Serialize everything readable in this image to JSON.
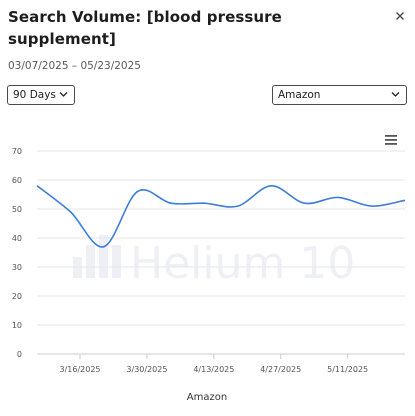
{
  "dialog": {
    "title": "Search Volume: [blood pressure supplement]",
    "date_range": "03/07/2025 – 05/23/2025",
    "close_icon": "close-icon"
  },
  "controls": {
    "period_select": {
      "value": "90 Days",
      "icon": "chevron-down-icon"
    },
    "marketplace_select": {
      "value": "Amazon",
      "icon": "chevron-down-icon"
    },
    "chart_menu_icon": "hamburger-menu-icon"
  },
  "watermark": {
    "text": "Helium 10",
    "icon": "helium10-logo-icon"
  },
  "colors": {
    "line": "#3b7dd8",
    "grid": "#e6e6e6",
    "axis": "#cccccc"
  },
  "chart_data": {
    "type": "line",
    "title": "",
    "xlabel": "Amazon",
    "ylabel": "",
    "ylim": [
      0,
      70
    ],
    "yticks": [
      0,
      10,
      20,
      30,
      40,
      50,
      60,
      70
    ],
    "xlim": [
      "2025-03-07",
      "2025-05-23"
    ],
    "xticks": [
      "3/16/2025",
      "3/30/2025",
      "4/13/2025",
      "4/27/2025",
      "5/11/2025"
    ],
    "xtick_dates": [
      "2025-03-16",
      "2025-03-30",
      "2025-04-13",
      "2025-04-27",
      "2025-05-11"
    ],
    "grid": true,
    "legend": "none",
    "series": [
      {
        "points": [
          [
            "2025-03-07",
            58
          ],
          [
            "2025-03-14",
            49
          ],
          [
            "2025-03-21",
            37
          ],
          [
            "2025-03-28",
            56
          ],
          [
            "2025-04-04",
            52
          ],
          [
            "2025-04-11",
            52
          ],
          [
            "2025-04-18",
            51
          ],
          [
            "2025-04-25",
            58
          ],
          [
            "2025-05-02",
            52
          ],
          [
            "2025-05-09",
            54
          ],
          [
            "2025-05-16",
            51
          ],
          [
            "2025-05-23",
            53
          ]
        ]
      }
    ]
  }
}
